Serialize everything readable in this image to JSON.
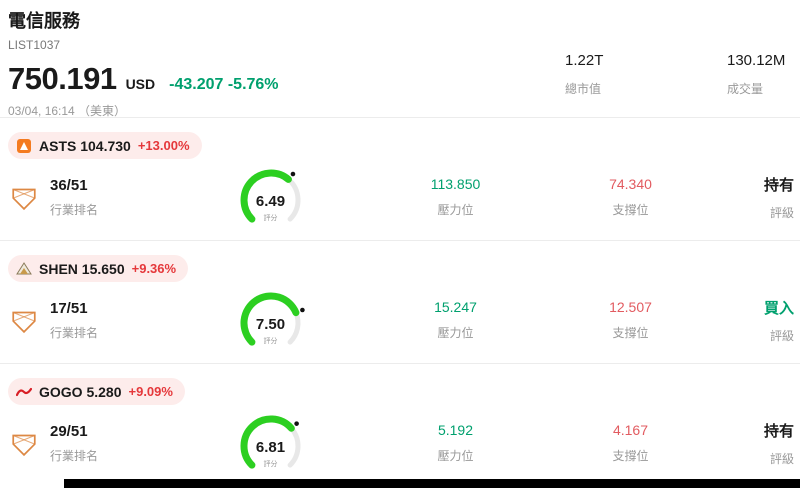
{
  "header": {
    "title": "電信服務",
    "list_id": "LIST1037",
    "price": "750.191",
    "currency": "USD",
    "change": "-43.207 -5.76%",
    "datetime": "03/04, 16:14 （美東）",
    "market_cap": {
      "value": "1.22T",
      "label": "總市值"
    },
    "volume": {
      "value": "130.12M",
      "label": "成交量"
    }
  },
  "labels": {
    "rank": "行業排名",
    "score": "評分",
    "pressure": "壓力位",
    "support": "支撐位",
    "rating": "評級"
  },
  "stocks": [
    {
      "ticker": "ASTS",
      "price": "104.730",
      "change_pct": "+13.00%",
      "rank": "36/51",
      "score": "6.49",
      "score_value": 6.49,
      "pressure": "113.850",
      "support": "74.340",
      "rating": "持有",
      "rating_color": "#1a1a1a"
    },
    {
      "ticker": "SHEN",
      "price": "15.650",
      "change_pct": "+9.36%",
      "rank": "17/51",
      "score": "7.50",
      "score_value": 7.5,
      "pressure": "15.247",
      "support": "12.507",
      "rating": "買入",
      "rating_color": "#00a06e"
    },
    {
      "ticker": "GOGO",
      "price": "5.280",
      "change_pct": "+9.09%",
      "rank": "29/51",
      "score": "6.81",
      "score_value": 6.81,
      "pressure": "5.192",
      "support": "4.167",
      "rating": "持有",
      "rating_color": "#1a1a1a"
    }
  ],
  "icons": {
    "asts_logo": "orange-rounded-square",
    "shen_logo": "mountain-triangle",
    "gogo_logo": "red-swoosh",
    "rank_badge": "orange-pentagon-outline"
  },
  "colors": {
    "up_red": "#e5383b",
    "down_teal": "#00a06e",
    "gauge_green": "#2ccf21",
    "pill_bg": "#fdeceb"
  }
}
